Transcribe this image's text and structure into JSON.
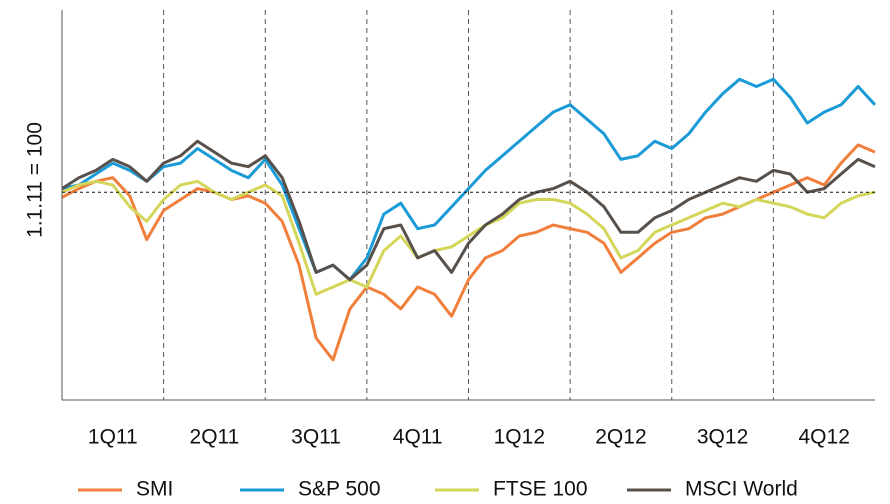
{
  "chart_data": {
    "type": "line",
    "y_label": "1.1.11 = 100",
    "reference_line": 100,
    "xlim": [
      0,
      24
    ],
    "ylim": [
      71.5,
      125
    ],
    "xticks": [
      {
        "value": 1.5,
        "label": "1Q11"
      },
      {
        "value": 4.5,
        "label": "2Q11"
      },
      {
        "value": 7.5,
        "label": "3Q11"
      },
      {
        "value": 10.5,
        "label": "4Q11"
      },
      {
        "value": 13.5,
        "label": "1Q12"
      },
      {
        "value": 16.5,
        "label": "2Q12"
      },
      {
        "value": 19.5,
        "label": "3Q12"
      },
      {
        "value": 22.5,
        "label": "4Q12"
      }
    ],
    "xgrid": [
      3,
      6,
      9,
      12,
      15,
      18,
      21
    ],
    "x": [
      0,
      0.5,
      1,
      1.5,
      2,
      2.5,
      3,
      3.5,
      4,
      4.5,
      5,
      5.5,
      6,
      6.5,
      7,
      7.5,
      8,
      8.5,
      9,
      9.5,
      10,
      10.5,
      11,
      11.5,
      12,
      12.5,
      13,
      13.5,
      14,
      14.5,
      15,
      15.5,
      16,
      16.5,
      17,
      17.5,
      18,
      18.5,
      19,
      19.5,
      20,
      20.5,
      21,
      21.5,
      22,
      22.5,
      23,
      23.5,
      24
    ],
    "series": [
      {
        "name": "SMI",
        "color": "#f07f3c",
        "values": [
          99.3,
          100.5,
          101.5,
          102,
          99.5,
          93.5,
          97.5,
          99,
          100.5,
          100,
          99,
          99.5,
          98.5,
          96,
          90,
          80,
          77,
          84,
          87,
          86,
          84,
          87,
          86,
          83,
          88,
          91,
          92,
          94,
          94.5,
          95.5,
          95,
          94.5,
          93,
          89,
          91,
          93,
          94.5,
          95,
          96.5,
          97,
          98,
          99,
          100,
          101,
          102,
          101,
          104,
          106.5,
          105.5
        ]
      },
      {
        "name": "S&P 500",
        "color": "#1a9ad6",
        "values": [
          100.5,
          101,
          102.5,
          104,
          103,
          101.5,
          103.5,
          104,
          106,
          104.5,
          103,
          102,
          104.5,
          101,
          95,
          89,
          90,
          88,
          91,
          97,
          98.5,
          95,
          95.5,
          98,
          100.5,
          103,
          105,
          107,
          109,
          111,
          112,
          110,
          108,
          104.5,
          105,
          107,
          106,
          108,
          111,
          113.5,
          115.5,
          114.5,
          115.5,
          113,
          109.5,
          111,
          112,
          114.5,
          112
        ]
      },
      {
        "name": "FTSE 100",
        "color": "#d4d65a",
        "values": [
          100,
          101,
          101.5,
          101,
          98,
          96,
          99,
          101,
          101.5,
          100,
          99,
          100,
          101,
          99.5,
          93,
          86,
          87,
          88,
          87,
          92,
          94,
          91,
          92,
          92.5,
          94,
          95.5,
          96.5,
          98.5,
          99,
          99,
          98.5,
          97,
          95,
          91,
          92,
          94.5,
          95.5,
          96.5,
          97.5,
          98.5,
          98,
          99,
          98.5,
          98,
          97,
          96.5,
          98.5,
          99.5,
          100
        ]
      },
      {
        "name": "MSCI World",
        "color": "#58504a",
        "values": [
          100.5,
          102,
          103,
          104.5,
          103.5,
          101.5,
          104,
          105,
          107,
          105.5,
          104,
          103.5,
          105,
          102,
          96,
          89,
          90,
          88,
          90,
          95,
          95.5,
          91,
          92,
          89,
          93,
          95.5,
          97,
          99,
          100,
          100.5,
          101.5,
          100,
          98,
          94.5,
          94.5,
          96.5,
          97.5,
          99,
          100,
          101,
          102,
          101.5,
          103,
          102.5,
          100,
          100.5,
          102.5,
          104.5,
          103.5
        ]
      }
    ]
  }
}
